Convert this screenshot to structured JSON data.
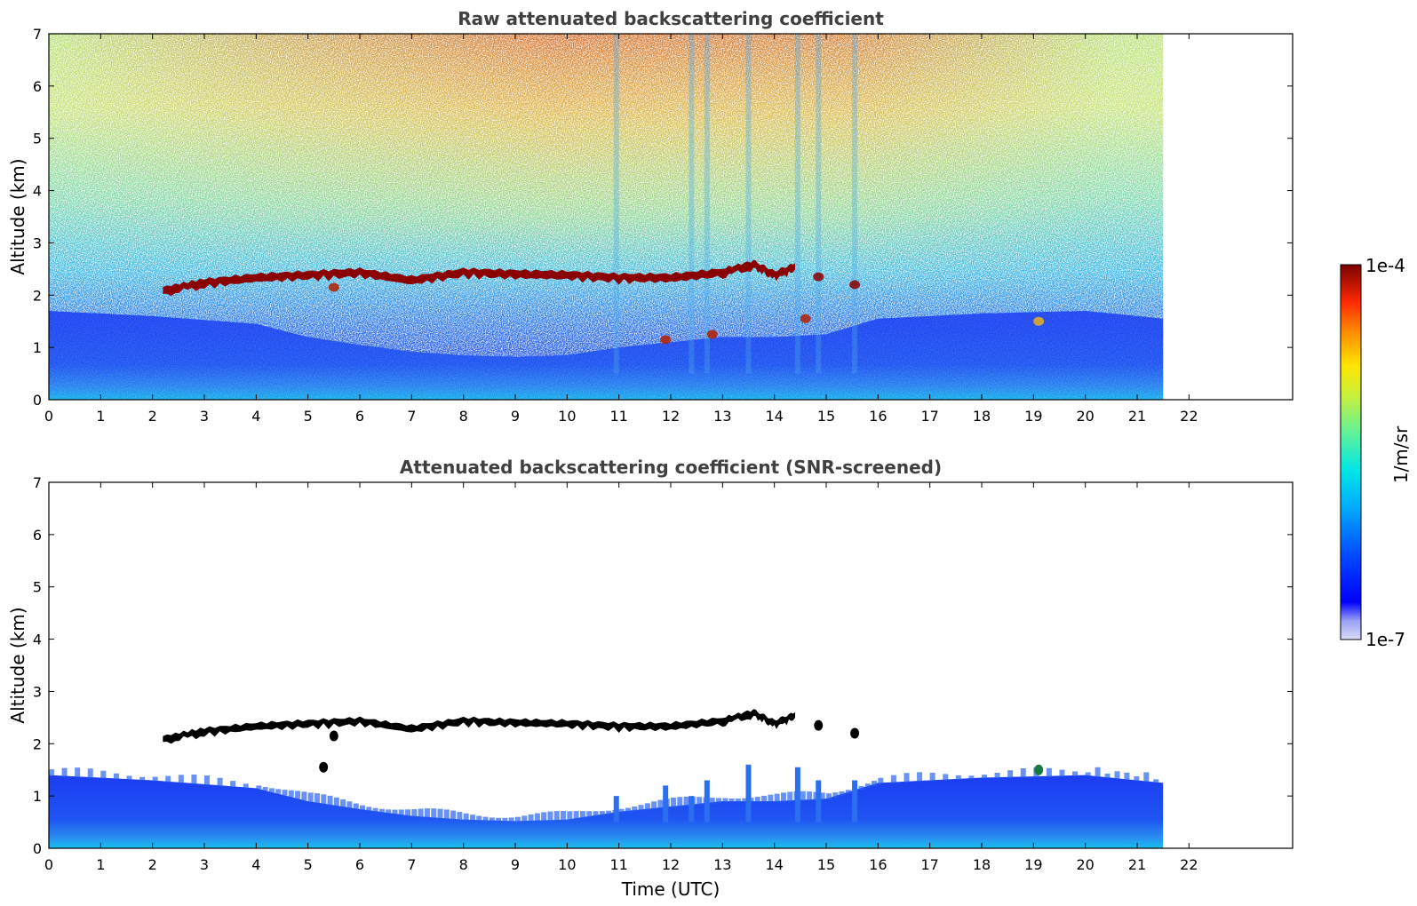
{
  "chart_data": [
    {
      "type": "heatmap",
      "title": "Raw attenuated backscattering coefficient",
      "xlabel": "",
      "ylabel": "Altitude (km)",
      "xlim": [
        0,
        24
      ],
      "ylim": [
        0,
        7
      ],
      "x_ticks": [
        0,
        1,
        2,
        3,
        4,
        5,
        6,
        7,
        8,
        9,
        10,
        11,
        12,
        13,
        14,
        15,
        16,
        17,
        18,
        19,
        20,
        21,
        22
      ],
      "y_ticks": [
        0,
        1,
        2,
        3,
        4,
        5,
        6,
        7
      ],
      "data_time_range": [
        0,
        21.5
      ],
      "color_scale": "log",
      "features": [
        {
          "label": "noise-dominated upper levels",
          "time_range": [
            0,
            21.5
          ],
          "altitude_range": [
            2.5,
            7
          ]
        },
        {
          "label": "aerosol boundary layer",
          "time_range": [
            0,
            21.5
          ],
          "altitude_range": [
            0,
            1.4
          ]
        },
        {
          "label": "cloud layer",
          "time_range": [
            2.2,
            14.4
          ],
          "altitude_km": 2.35
        },
        {
          "label": "isolated cloud",
          "time": 19.1,
          "altitude_km": 1.5
        }
      ]
    },
    {
      "type": "heatmap",
      "title": "Attenuated backscattering coefficient (SNR-screened)",
      "xlabel": "Time (UTC)",
      "ylabel": "Altitude (km)",
      "xlim": [
        0,
        24
      ],
      "ylim": [
        0,
        7
      ],
      "x_ticks": [
        0,
        1,
        2,
        3,
        4,
        5,
        6,
        7,
        8,
        9,
        10,
        11,
        12,
        13,
        14,
        15,
        16,
        17,
        18,
        19,
        20,
        21,
        22
      ],
      "y_ticks": [
        0,
        1,
        2,
        3,
        4,
        5,
        6,
        7
      ],
      "data_time_range": [
        0,
        21.5
      ],
      "color_scale": "log",
      "boundary_layer_top_km": [
        {
          "t": 0,
          "h": 1.4
        },
        {
          "t": 2,
          "h": 1.3
        },
        {
          "t": 4,
          "h": 1.15
        },
        {
          "t": 5,
          "h": 0.9
        },
        {
          "t": 6,
          "h": 0.75
        },
        {
          "t": 7,
          "h": 0.62
        },
        {
          "t": 8,
          "h": 0.55
        },
        {
          "t": 9,
          "h": 0.52
        },
        {
          "t": 10,
          "h": 0.55
        },
        {
          "t": 11,
          "h": 0.7
        },
        {
          "t": 12,
          "h": 0.8
        },
        {
          "t": 13,
          "h": 0.9
        },
        {
          "t": 14,
          "h": 0.9
        },
        {
          "t": 15,
          "h": 0.95
        },
        {
          "t": 16,
          "h": 1.25
        },
        {
          "t": 18,
          "h": 1.35
        },
        {
          "t": 20,
          "h": 1.4
        },
        {
          "t": 21.5,
          "h": 1.25
        }
      ]
    }
  ],
  "cloud_layer_altitude_km": [
    {
      "t": 2.2,
      "h": 2.1
    },
    {
      "t": 3,
      "h": 2.25
    },
    {
      "t": 4,
      "h": 2.35
    },
    {
      "t": 5,
      "h": 2.4
    },
    {
      "t": 6,
      "h": 2.45
    },
    {
      "t": 7,
      "h": 2.3
    },
    {
      "t": 8,
      "h": 2.45
    },
    {
      "t": 9,
      "h": 2.42
    },
    {
      "t": 10,
      "h": 2.4
    },
    {
      "t": 11,
      "h": 2.35
    },
    {
      "t": 12,
      "h": 2.35
    },
    {
      "t": 13,
      "h": 2.45
    },
    {
      "t": 13.6,
      "h": 2.6
    },
    {
      "t": 14,
      "h": 2.4
    },
    {
      "t": 14.4,
      "h": 2.55
    }
  ],
  "colorbar": {
    "label": "1/m/sr",
    "max_label": "1e-4",
    "min_label": "1e-7",
    "range": [
      1e-07,
      0.0001
    ],
    "colormap": "jet"
  },
  "colors": {
    "text": "#000000",
    "title": "#404040",
    "cloud_raw": "#8b0000",
    "cloud_screened": "#000000",
    "boundary_layer_low": "#1a2cf0",
    "boundary_layer_surface": "#19b8ee"
  }
}
